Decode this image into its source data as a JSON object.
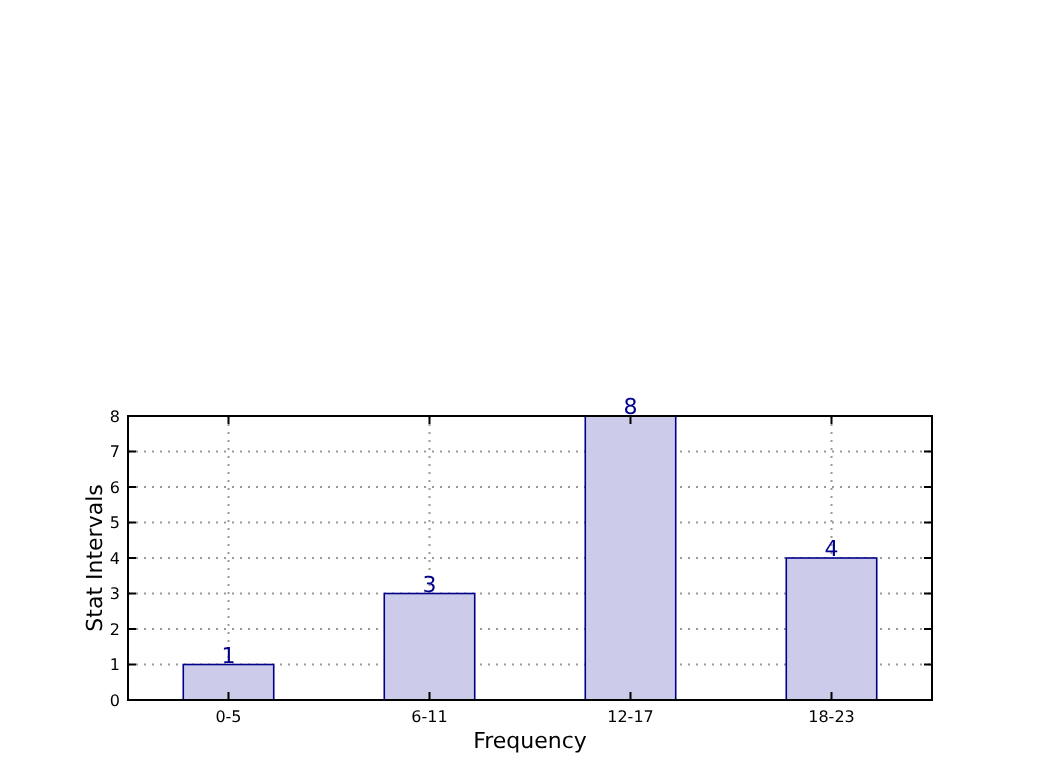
{
  "chart_data": {
    "type": "bar",
    "xlabel": "Frequency",
    "ylabel": "Stat Intervals",
    "categories": [
      "0-5",
      "6-11",
      "12-17",
      "18-23"
    ],
    "values": [
      1,
      3,
      8,
      4
    ],
    "color": "#ccccea",
    "ylim": [
      0,
      8
    ],
    "yticks": [
      0,
      1,
      2,
      3,
      4,
      5,
      6,
      7,
      8
    ],
    "grid": true,
    "data_labels": true
  }
}
